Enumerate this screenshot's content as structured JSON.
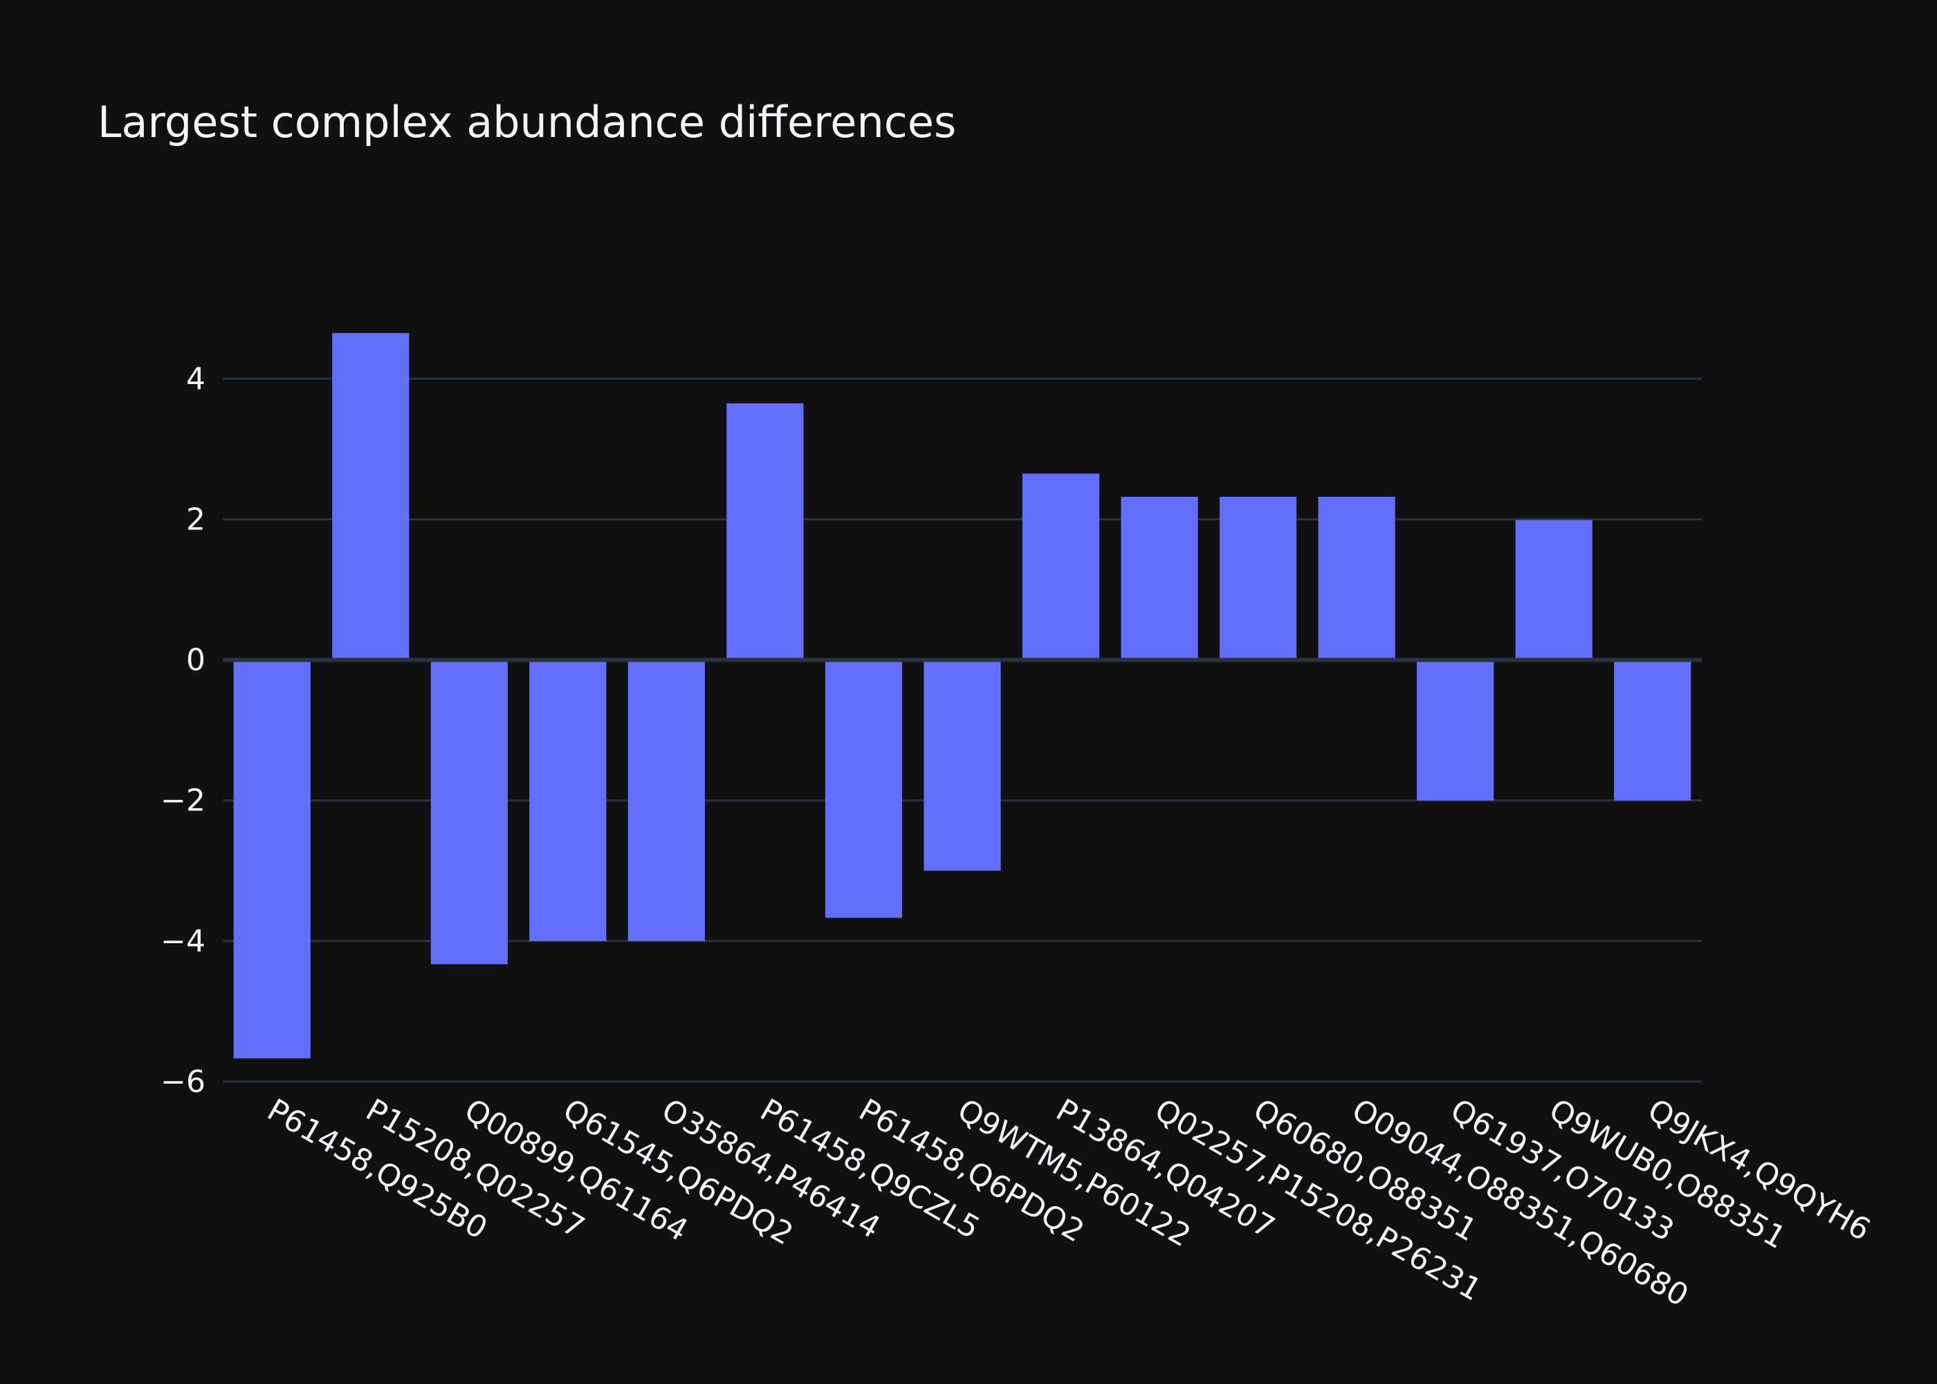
{
  "chart_data": {
    "type": "bar",
    "title": "Largest complex abundance differences",
    "xlabel": "",
    "ylabel": "",
    "categories": [
      "P61458,Q925B0",
      "P15208,Q02257",
      "Q00899,Q61164",
      "Q61545,Q6PDQ2",
      "O35864,P46414",
      "P61458,Q9CZL5",
      "P61458,Q6PDQ2",
      "Q9WTM5,P60122",
      "P13864,Q04207",
      "Q02257,P15208,P26231",
      "Q60680,O88351",
      "O09044,O88351,Q60680",
      "Q61937,O70133",
      "Q9WUB0,O88351",
      "Q9JKX4,Q9QYH6"
    ],
    "values": [
      -5.67,
      4.65,
      -4.33,
      -4.0,
      -4.0,
      3.65,
      -3.67,
      -3.0,
      2.65,
      2.32,
      2.32,
      2.32,
      -2.0,
      1.99,
      -2.0
    ],
    "ylim": [
      -6.0,
      5.45
    ],
    "yticks": [
      -6,
      -4,
      -2,
      0,
      2,
      4
    ],
    "grid": true,
    "legend": "none",
    "colors": {
      "background": "#111111",
      "bar": "#636efa",
      "grid": "#283442",
      "text": "#f2f5fa"
    }
  }
}
